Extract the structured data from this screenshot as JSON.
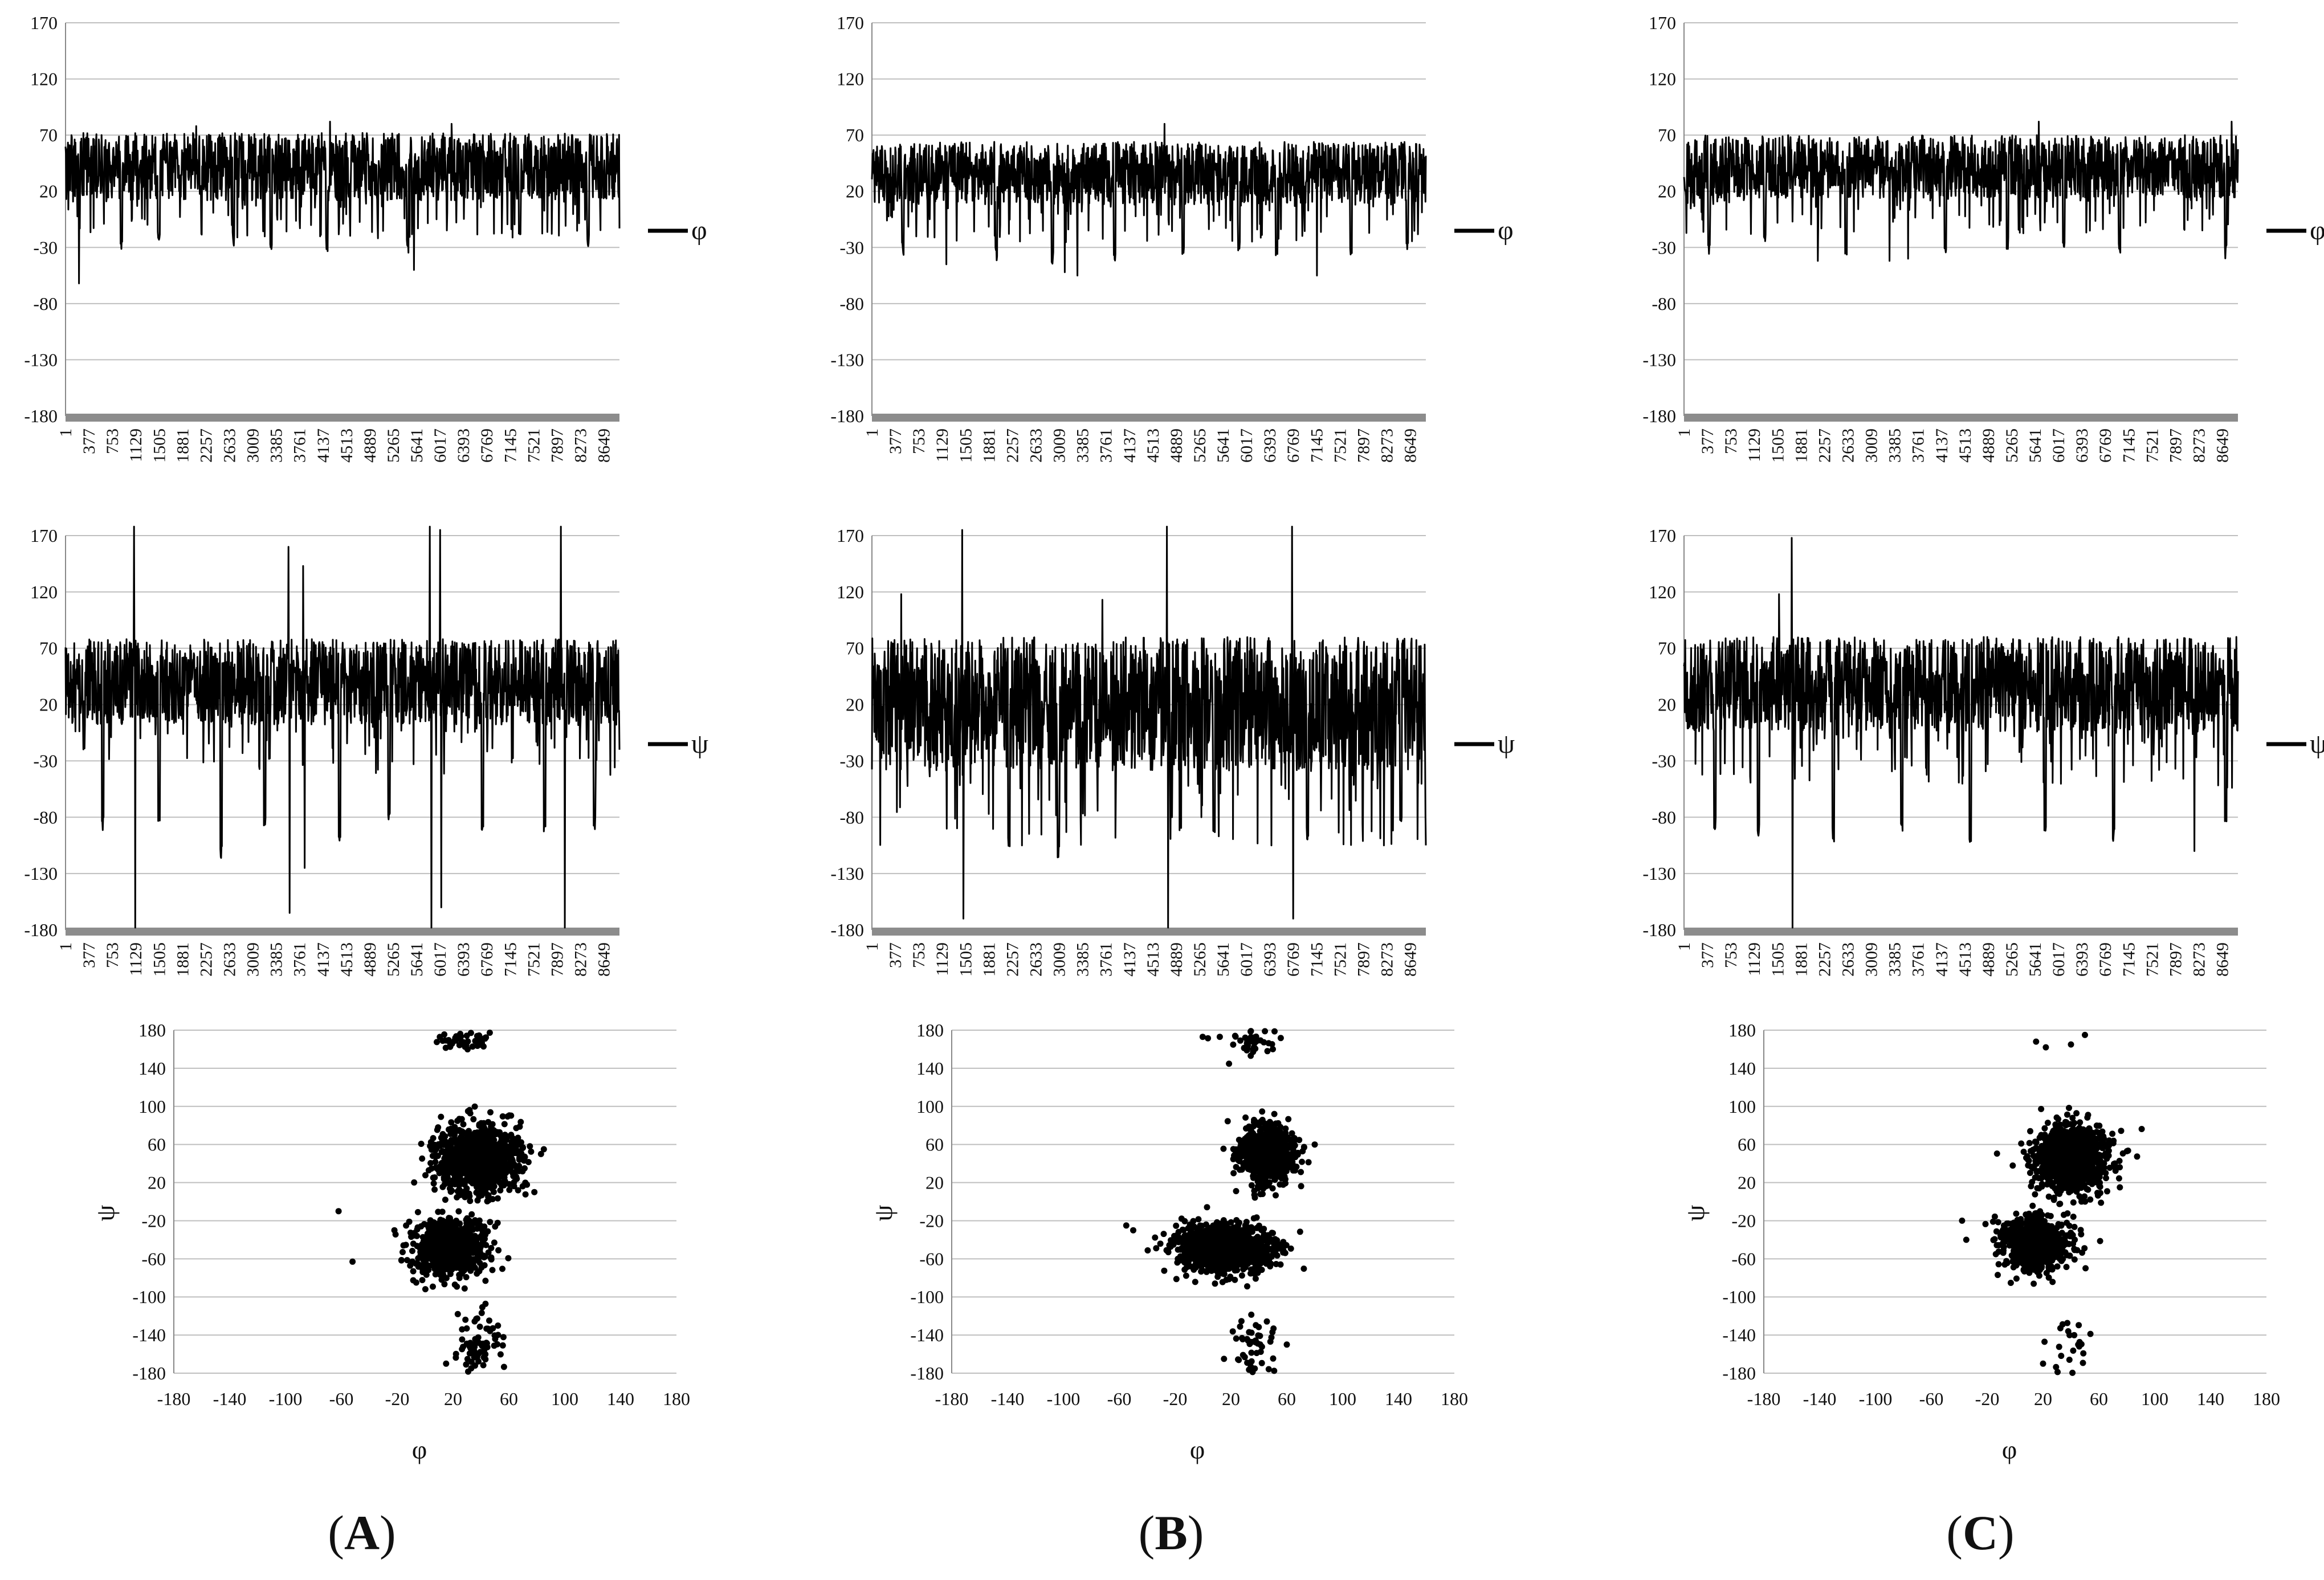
{
  "panel_labels": [
    {
      "open": "(",
      "letter": "A",
      "close": ")"
    },
    {
      "open": "(",
      "letter": "B",
      "close": ")"
    },
    {
      "open": "(",
      "letter": "C",
      "close": ")"
    }
  ],
  "colors": {
    "series": "#000000",
    "grid": "#bfbfbf",
    "axis_bar": "#8c8c8c"
  },
  "chart_data": [
    {
      "panel": "A",
      "type": "line",
      "legend": "φ",
      "legend_position": "right",
      "ylim": [
        -180,
        170
      ],
      "yticks": [
        170,
        120,
        70,
        20,
        -30,
        -80,
        -130,
        -180
      ],
      "xticks": [
        1,
        377,
        753,
        1129,
        1505,
        1881,
        2257,
        2633,
        3009,
        3385,
        3761,
        4137,
        4513,
        4889,
        5265,
        5641,
        6017,
        6393,
        6769,
        7145,
        7521,
        7897,
        8273,
        8649
      ],
      "xmax": 8900,
      "grid": true,
      "profile": {
        "center": 42,
        "spread": 30,
        "max": 80,
        "min": -60,
        "spikes": [
          [
            220,
            -62
          ],
          [
            2100,
            78
          ],
          [
            4250,
            82
          ],
          [
            5600,
            -50
          ],
          [
            6200,
            80
          ]
        ],
        "dips": [
          [
            900,
            -25
          ],
          [
            1500,
            -20
          ],
          [
            2700,
            -22
          ],
          [
            3300,
            -25
          ],
          [
            4200,
            -28
          ],
          [
            5500,
            -30
          ],
          [
            7300,
            -20
          ],
          [
            8400,
            -25
          ]
        ]
      }
    },
    {
      "panel": "A",
      "type": "line",
      "legend": "ψ",
      "legend_position": "right",
      "ylim": [
        -180,
        170
      ],
      "yticks": [
        170,
        120,
        70,
        20,
        -30,
        -80,
        -130,
        -180
      ],
      "xticks": [
        1,
        377,
        753,
        1129,
        1505,
        1881,
        2257,
        2633,
        3009,
        3385,
        3761,
        4137,
        4513,
        4889,
        5265,
        5641,
        6017,
        6393,
        6769,
        7145,
        7521,
        7897,
        8273,
        8649
      ],
      "xmax": 8900,
      "grid": true,
      "profile": {
        "center": 40,
        "spread": 38,
        "max": 95,
        "min": -100,
        "spikes": [
          [
            1100,
            178
          ],
          [
            1120,
            -178
          ],
          [
            3580,
            160
          ],
          [
            3600,
            -165
          ],
          [
            3820,
            143
          ],
          [
            3840,
            -125
          ],
          [
            5850,
            178
          ],
          [
            5880,
            -178
          ],
          [
            6020,
            175
          ],
          [
            6040,
            -160
          ],
          [
            7960,
            178
          ],
          [
            8020,
            -178
          ]
        ],
        "dips": [
          [
            600,
            -85
          ],
          [
            1500,
            -80
          ],
          [
            2500,
            -110
          ],
          [
            3200,
            -85
          ],
          [
            4400,
            -95
          ],
          [
            5200,
            -80
          ],
          [
            6700,
            -85
          ],
          [
            7700,
            -90
          ],
          [
            8500,
            -85
          ]
        ]
      }
    },
    {
      "panel": "A",
      "type": "scatter",
      "xlabel": "φ",
      "ylabel": "ψ",
      "xlim": [
        -180,
        180
      ],
      "ylim": [
        -180,
        180
      ],
      "xticks": [
        -180,
        -140,
        -100,
        -60,
        -20,
        20,
        60,
        100,
        140,
        180
      ],
      "yticks": [
        180,
        140,
        100,
        60,
        20,
        -20,
        -60,
        -100,
        -140,
        -180
      ],
      "clusters": [
        {
          "cx": 38,
          "cy": 45,
          "sx": 14,
          "sy": 17,
          "n": 1100
        },
        {
          "cx": 17,
          "cy": -47,
          "sx": 13,
          "sy": 15,
          "n": 700
        },
        {
          "cx": 27,
          "cy": 170,
          "sx": 9,
          "sy": 7,
          "n": 45
        },
        {
          "cx": 38,
          "cy": -145,
          "sx": 8,
          "sy": 17,
          "n": 70
        }
      ],
      "outliers": [
        [
          -62,
          -10
        ],
        [
          -52,
          -63
        ],
        [
          -22,
          -30
        ],
        [
          15,
          -170
        ],
        [
          83,
          50
        ],
        [
          85,
          55
        ]
      ]
    },
    {
      "panel": "B",
      "type": "line",
      "legend": "φ",
      "legend_position": "right",
      "ylim": [
        -180,
        170
      ],
      "yticks": [
        170,
        120,
        70,
        20,
        -30,
        -80,
        -130,
        -180
      ],
      "xticks": [
        1,
        377,
        753,
        1129,
        1505,
        1881,
        2257,
        2633,
        3009,
        3385,
        3761,
        4137,
        4513,
        4889,
        5265,
        5641,
        6017,
        6393,
        6769,
        7145,
        7521,
        7897,
        8273,
        8649
      ],
      "xmax": 8900,
      "grid": true,
      "profile": {
        "center": 36,
        "spread": 28,
        "max": 80,
        "min": -55,
        "spikes": [
          [
            1200,
            -45
          ],
          [
            3100,
            -52
          ],
          [
            3300,
            -55
          ],
          [
            4700,
            80
          ],
          [
            7150,
            -55
          ]
        ],
        "dips": [
          [
            500,
            -30
          ],
          [
            2000,
            -35
          ],
          [
            2900,
            -40
          ],
          [
            3900,
            -35
          ],
          [
            5000,
            -30
          ],
          [
            5900,
            -28
          ],
          [
            6500,
            -30
          ],
          [
            7700,
            -30
          ],
          [
            8600,
            -30
          ]
        ]
      }
    },
    {
      "panel": "B",
      "type": "line",
      "legend": "ψ",
      "legend_position": "right",
      "ylim": [
        -180,
        170
      ],
      "yticks": [
        170,
        120,
        70,
        20,
        -30,
        -80,
        -130,
        -180
      ],
      "xticks": [
        1,
        377,
        753,
        1129,
        1505,
        1881,
        2257,
        2633,
        3009,
        3385,
        3761,
        4137,
        4513,
        4889,
        5265,
        5641,
        6017,
        6393,
        6769,
        7145,
        7521,
        7897,
        8273,
        8649
      ],
      "xmax": 8900,
      "grid": true,
      "profile": {
        "center": 20,
        "spread": 60,
        "max": 115,
        "min": -105,
        "spikes": [
          [
            470,
            118
          ],
          [
            1450,
            175
          ],
          [
            1470,
            -170
          ],
          [
            3700,
            113
          ],
          [
            4740,
            178
          ],
          [
            4760,
            -178
          ],
          [
            6750,
            178
          ],
          [
            6770,
            -170
          ]
        ],
        "dips": [
          [
            2200,
            -100
          ],
          [
            3000,
            -110
          ],
          [
            5500,
            -90
          ],
          [
            7000,
            -95
          ],
          [
            8500,
            -85
          ]
        ]
      }
    },
    {
      "panel": "B",
      "type": "scatter",
      "xlabel": "φ",
      "ylabel": "ψ",
      "xlim": [
        -180,
        180
      ],
      "ylim": [
        -180,
        180
      ],
      "xticks": [
        -180,
        -140,
        -100,
        -60,
        -20,
        20,
        60,
        100,
        140,
        180
      ],
      "yticks": [
        180,
        140,
        100,
        60,
        20,
        -20,
        -60,
        -100,
        -140,
        -180
      ],
      "clusters": [
        {
          "cx": 45,
          "cy": 50,
          "sx": 9,
          "sy": 14,
          "n": 950
        },
        {
          "cx": 15,
          "cy": -50,
          "sx": 17,
          "sy": 12,
          "n": 1000
        },
        {
          "cx": 33,
          "cy": 170,
          "sx": 9,
          "sy": 8,
          "n": 40
        },
        {
          "cx": 38,
          "cy": -150,
          "sx": 8,
          "sy": 15,
          "n": 45
        }
      ],
      "outliers": [
        [
          -55,
          -25
        ],
        [
          -50,
          -30
        ],
        [
          12,
          173
        ],
        [
          50,
          160
        ],
        [
          15,
          -165
        ],
        [
          60,
          -150
        ],
        [
          80,
          60
        ]
      ]
    },
    {
      "panel": "C",
      "type": "line",
      "legend": "φ",
      "legend_position": "right",
      "ylim": [
        -180,
        170
      ],
      "yticks": [
        170,
        120,
        70,
        20,
        -30,
        -80,
        -130,
        -180
      ],
      "xticks": [
        1,
        377,
        753,
        1129,
        1505,
        1881,
        2257,
        2633,
        3009,
        3385,
        3761,
        4137,
        4513,
        4889,
        5265,
        5641,
        6017,
        6393,
        6769,
        7145,
        7521,
        7897,
        8273,
        8649
      ],
      "xmax": 8900,
      "grid": true,
      "profile": {
        "center": 42,
        "spread": 28,
        "max": 85,
        "min": -45,
        "spikes": [
          [
            2150,
            -42
          ],
          [
            3300,
            -42
          ],
          [
            3600,
            -40
          ],
          [
            5700,
            82
          ],
          [
            8800,
            82
          ]
        ],
        "dips": [
          [
            400,
            -30
          ],
          [
            1300,
            -25
          ],
          [
            2600,
            -30
          ],
          [
            4200,
            -30
          ],
          [
            5200,
            -25
          ],
          [
            6100,
            -25
          ],
          [
            7000,
            -28
          ],
          [
            8700,
            -35
          ]
        ]
      }
    },
    {
      "panel": "C",
      "type": "line",
      "legend": "ψ",
      "legend_position": "right",
      "ylim": [
        -180,
        170
      ],
      "yticks": [
        170,
        120,
        70,
        20,
        -30,
        -80,
        -130,
        -180
      ],
      "xticks": [
        1,
        377,
        753,
        1129,
        1505,
        1881,
        2257,
        2633,
        3009,
        3385,
        3761,
        4137,
        4513,
        4889,
        5265,
        5641,
        6017,
        6393,
        6769,
        7145,
        7521,
        7897,
        8273,
        8649
      ],
      "xmax": 8900,
      "grid": true,
      "profile": {
        "center": 38,
        "spread": 42,
        "max": 95,
        "min": -100,
        "spikes": [
          [
            1730,
            168
          ],
          [
            1745,
            -178
          ],
          [
            1530,
            118
          ],
          [
            8200,
            -110
          ]
        ],
        "dips": [
          [
            500,
            -85
          ],
          [
            1200,
            -90
          ],
          [
            2400,
            -95
          ],
          [
            3500,
            -90
          ],
          [
            4600,
            -95
          ],
          [
            5800,
            -90
          ],
          [
            6900,
            -95
          ],
          [
            8700,
            -80
          ]
        ]
      }
    },
    {
      "panel": "C",
      "type": "scatter",
      "xlabel": "φ",
      "ylabel": "ψ",
      "xlim": [
        -180,
        180
      ],
      "ylim": [
        -180,
        180
      ],
      "xticks": [
        -180,
        -140,
        -100,
        -60,
        -20,
        20,
        60,
        100,
        140,
        180
      ],
      "yticks": [
        180,
        140,
        100,
        60,
        20,
        -20,
        -60,
        -100,
        -140,
        -180
      ],
      "clusters": [
        {
          "cx": 40,
          "cy": 45,
          "sx": 13,
          "sy": 17,
          "n": 1000
        },
        {
          "cx": 15,
          "cy": -45,
          "sx": 12,
          "sy": 14,
          "n": 650
        },
        {
          "cx": 38,
          "cy": -150,
          "sx": 8,
          "sy": 14,
          "n": 22
        }
      ],
      "outliers": [
        [
          15,
          168
        ],
        [
          22,
          162
        ],
        [
          40,
          165
        ],
        [
          50,
          175
        ],
        [
          -38,
          -20
        ],
        [
          -35,
          -40
        ],
        [
          75,
          15
        ],
        [
          20,
          -170
        ]
      ]
    }
  ]
}
